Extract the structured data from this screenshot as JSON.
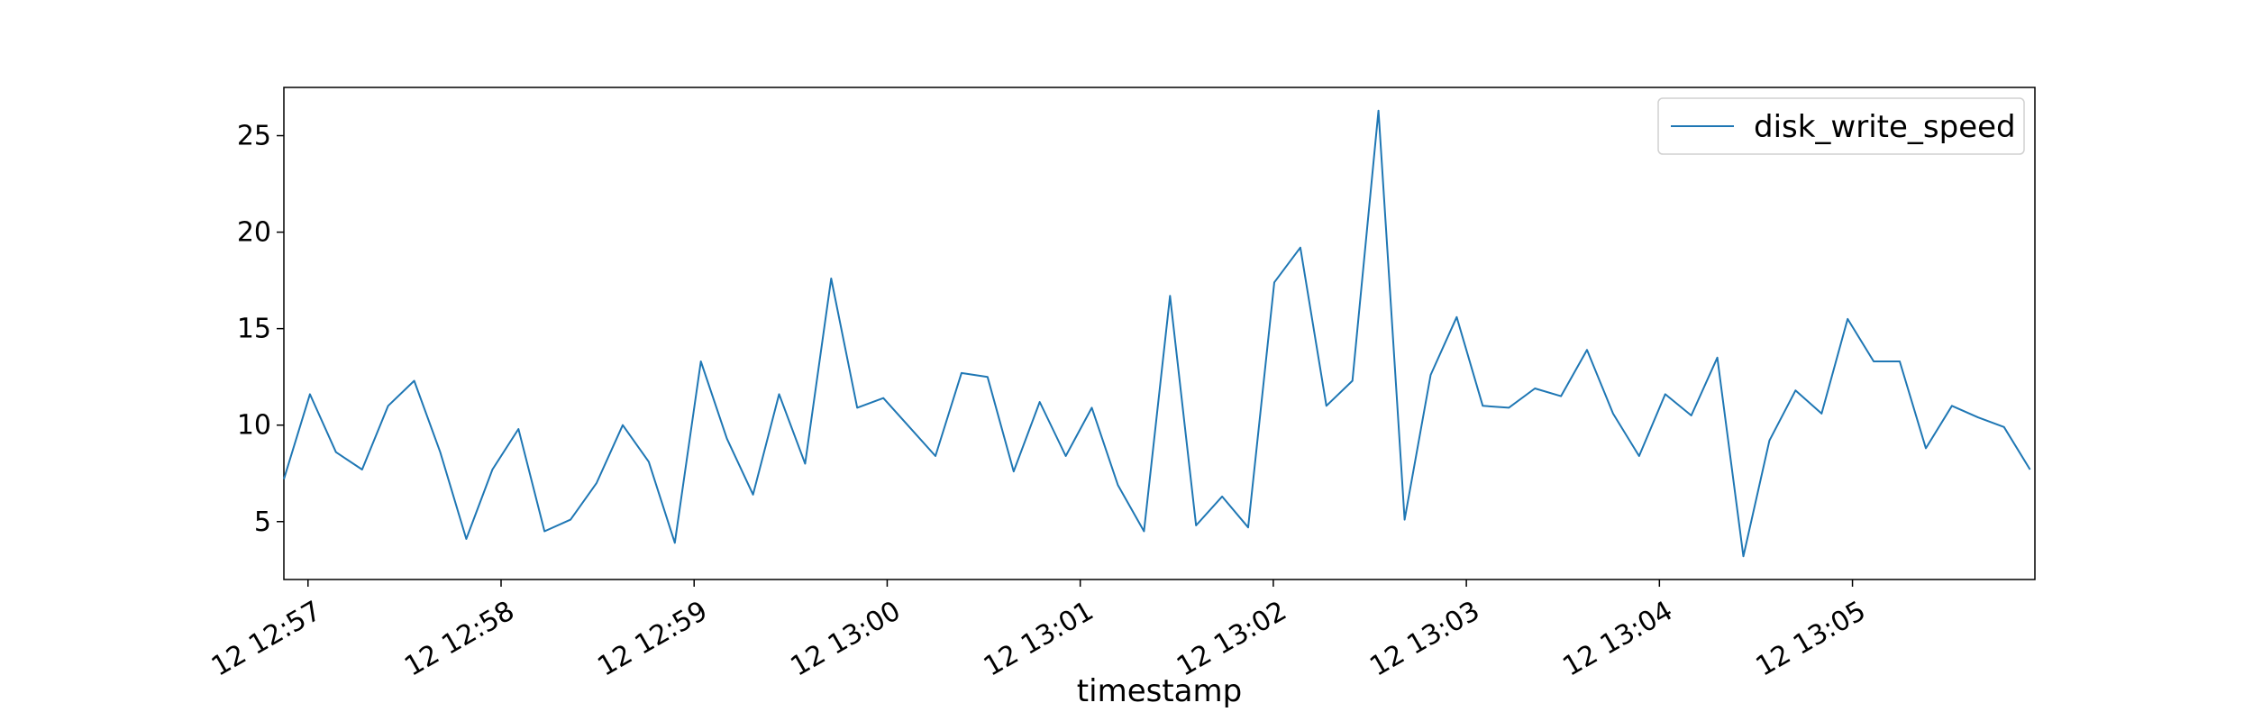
{
  "chart_data": {
    "type": "line",
    "title": "",
    "xlabel": "timestamp",
    "ylabel": "",
    "x_ticks": [
      {
        "offset": 0.125,
        "label": "12 12:57"
      },
      {
        "offset": 1.125,
        "label": "12 12:58"
      },
      {
        "offset": 2.125,
        "label": "12 12:59"
      },
      {
        "offset": 3.125,
        "label": "12 13:00"
      },
      {
        "offset": 4.125,
        "label": "12 13:01"
      },
      {
        "offset": 5.125,
        "label": "12 13:02"
      },
      {
        "offset": 6.125,
        "label": "12 13:03"
      },
      {
        "offset": 7.125,
        "label": "12 13:04"
      },
      {
        "offset": 8.125,
        "label": "12 13:05"
      }
    ],
    "y_ticks": [
      5,
      10,
      15,
      20,
      25
    ],
    "xlim": [
      0,
      9.07
    ],
    "ylim": [
      2.0,
      27.5
    ],
    "x_step_minutes": 0.135,
    "grid": false,
    "legend": {
      "position": "top-right",
      "entries": [
        "disk_write_speed"
      ]
    },
    "series": [
      {
        "name": "disk_write_speed",
        "color": "#1f77b4",
        "values": [
          7.2,
          11.6,
          8.6,
          7.7,
          11.0,
          12.3,
          8.6,
          4.1,
          7.7,
          9.8,
          4.5,
          5.1,
          7.0,
          10.0,
          8.1,
          3.9,
          13.3,
          9.3,
          6.4,
          11.6,
          8.0,
          17.6,
          10.9,
          11.4,
          9.9,
          8.4,
          12.7,
          12.5,
          7.6,
          11.2,
          8.4,
          10.9,
          6.9,
          4.5,
          16.7,
          4.8,
          6.3,
          4.7,
          17.4,
          19.2,
          11.0,
          12.3,
          26.3,
          5.1,
          12.6,
          15.6,
          11.0,
          10.9,
          11.9,
          11.5,
          13.9,
          10.6,
          8.4,
          11.6,
          10.5,
          13.5,
          3.2,
          9.2,
          11.8,
          10.6,
          15.5,
          13.3,
          13.3,
          8.8,
          11.0,
          10.4,
          9.9,
          7.7
        ]
      }
    ]
  }
}
